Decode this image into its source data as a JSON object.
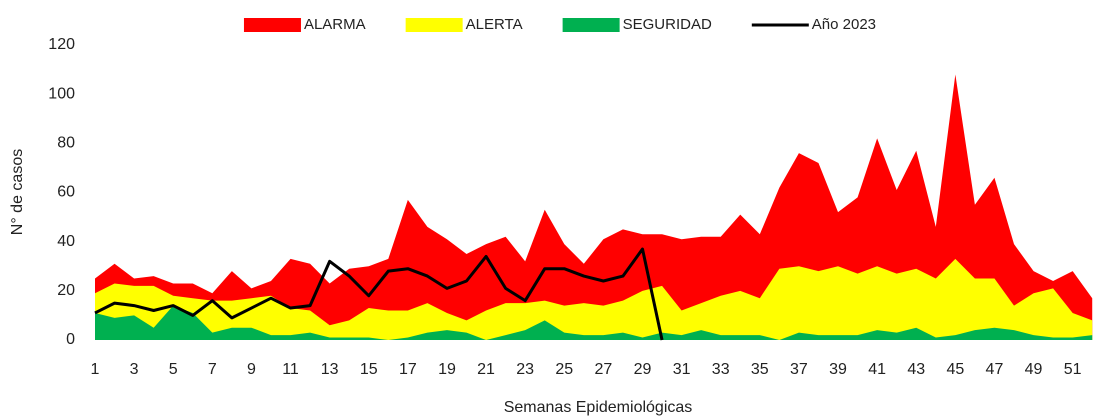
{
  "chart_data": {
    "type": "area",
    "x_label": "Semanas Epidemiológicas",
    "y_label": "N° de casos",
    "x": [
      1,
      2,
      3,
      4,
      5,
      6,
      7,
      8,
      9,
      10,
      11,
      12,
      13,
      14,
      15,
      16,
      17,
      18,
      19,
      20,
      21,
      22,
      23,
      24,
      25,
      26,
      27,
      28,
      29,
      30,
      31,
      32,
      33,
      34,
      35,
      36,
      37,
      38,
      39,
      40,
      41,
      42,
      43,
      44,
      45,
      46,
      47,
      48,
      49,
      50,
      51,
      52
    ],
    "xlim": [
      1,
      52.5
    ],
    "xticks": [
      1,
      3,
      5,
      7,
      9,
      11,
      13,
      15,
      17,
      19,
      21,
      23,
      25,
      27,
      29,
      31,
      33,
      35,
      37,
      39,
      41,
      43,
      45,
      47,
      49,
      51
    ],
    "ylim": [
      0,
      120
    ],
    "yticks": [
      0,
      20,
      40,
      60,
      80,
      100,
      120
    ],
    "legend": "top",
    "series": [
      {
        "name": "ALARMA",
        "color": "#ff0000",
        "kind": "area",
        "values": [
          25,
          31,
          25,
          26,
          23,
          23,
          19,
          28,
          21,
          24,
          33,
          31,
          23,
          29,
          30,
          33,
          57,
          46,
          41,
          35,
          39,
          42,
          32,
          53,
          39,
          31,
          41,
          45,
          43,
          43,
          41,
          42,
          42,
          51,
          43,
          62,
          76,
          72,
          52,
          58,
          82,
          61,
          77,
          46,
          108,
          55,
          66,
          39,
          28,
          24,
          28,
          17
        ]
      },
      {
        "name": "ALERTA",
        "color": "#ffff00",
        "kind": "area",
        "values": [
          19,
          23,
          22,
          22,
          18,
          17,
          16,
          16,
          17,
          18,
          13,
          12,
          6,
          8,
          13,
          12,
          12,
          15,
          11,
          8,
          12,
          15,
          15,
          16,
          14,
          15,
          14,
          16,
          20,
          22,
          12,
          15,
          18,
          20,
          17,
          29,
          30,
          28,
          30,
          27,
          30,
          27,
          29,
          25,
          33,
          25,
          25,
          14,
          19,
          21,
          11,
          8
        ]
      },
      {
        "name": "SEGURIDAD",
        "color": "#00b050",
        "kind": "area",
        "values": [
          11,
          9,
          10,
          5,
          14,
          11,
          3,
          5,
          5,
          2,
          2,
          3,
          1,
          1,
          1,
          0,
          1,
          3,
          4,
          3,
          0,
          2,
          4,
          8,
          3,
          2,
          2,
          3,
          1,
          3,
          2,
          4,
          2,
          2,
          2,
          0,
          3,
          2,
          2,
          2,
          4,
          3,
          5,
          1,
          2,
          4,
          5,
          4,
          2,
          1,
          1,
          2
        ]
      },
      {
        "name": "Año 2023",
        "color": "#000000",
        "kind": "line",
        "values": [
          11,
          15,
          14,
          12,
          14,
          10,
          16,
          9,
          13,
          17,
          13,
          14,
          32,
          26,
          18,
          28,
          29,
          26,
          21,
          24,
          34,
          21,
          16,
          29,
          29,
          26,
          24,
          26,
          37,
          0,
          null,
          null,
          null,
          null,
          null,
          null,
          null,
          null,
          null,
          null,
          null,
          null,
          null,
          null,
          null,
          null,
          null,
          null,
          null,
          null,
          null,
          null
        ]
      }
    ]
  }
}
